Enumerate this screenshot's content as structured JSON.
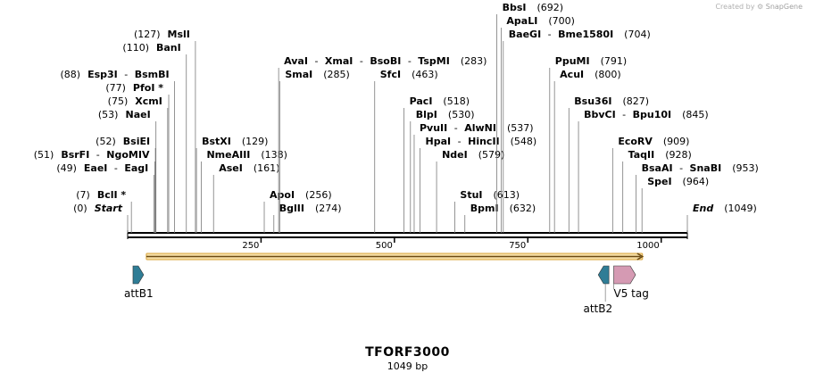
{
  "credit": {
    "prefix": "Created by",
    "brand": "SnapGene"
  },
  "sequence": {
    "name": "TFORF3000",
    "length_label": "1049 bp",
    "length": 1049
  },
  "ruler": {
    "ticks": [
      250,
      500,
      750,
      1000
    ]
  },
  "colors": {
    "attB": "#2f7d96",
    "v5": "#d59ab3",
    "orf_fill": "#f7e0a8",
    "orf_stroke": "#d8a33a",
    "line": "#000000"
  },
  "sites": [
    {
      "row": 0,
      "pos": 0,
      "name": "Start",
      "num": "(0)",
      "italic": true
    },
    {
      "row": 1,
      "pos": 7,
      "name": "BclI *",
      "num": "(7)"
    },
    {
      "row": 3,
      "pos": 49,
      "name": "EaeI",
      "name2": "EagI",
      "num": "(49)"
    },
    {
      "row": 4,
      "pos": 51,
      "name": "BsrFI",
      "name2": "NgoMIV",
      "num": "(51)"
    },
    {
      "row": 5,
      "pos": 52,
      "name": "BsiEI",
      "num": "(52)"
    },
    {
      "row": 7,
      "pos": 53,
      "name": "NaeI",
      "num": "(53)"
    },
    {
      "row": 8,
      "pos": 75,
      "name": "XcmI",
      "num": "(75)"
    },
    {
      "row": 9,
      "pos": 77,
      "name": "PfoI *",
      "num": "(77)"
    },
    {
      "row": 10,
      "pos": 88,
      "name": "Esp3I",
      "name2": "BsmBI",
      "num": "(88)"
    },
    {
      "row": 12,
      "pos": 110,
      "name": "BanI",
      "num": "(110)"
    },
    {
      "row": 13,
      "pos": 127,
      "name": "MslI",
      "num": "(127)"
    },
    {
      "row": 5,
      "pos": 129,
      "name": "BstXI",
      "num": "(129)",
      "right": true
    },
    {
      "row": 4,
      "pos": 138,
      "name": "NmeAIII",
      "num": "(138)",
      "right": true
    },
    {
      "row": 3,
      "pos": 161,
      "name": "AseI",
      "num": "(161)",
      "right": true
    },
    {
      "row": 1,
      "pos": 256,
      "name": "ApoI",
      "num": "(256)",
      "right": true
    },
    {
      "row": 0,
      "pos": 274,
      "name": "BglII",
      "num": "(274)",
      "right": true
    },
    {
      "row": 10,
      "pos": 285,
      "name": "SmaI",
      "num": "(285)",
      "right": true
    },
    {
      "row": 11,
      "pos": 283,
      "name": "AvaI",
      "name2": "XmaI",
      "name3": "BsoBI",
      "name4": "TspMI",
      "num": "(283)",
      "right": true
    },
    {
      "row": 10,
      "pos": 463,
      "name": "SfcI",
      "num": "(463)",
      "right": true
    },
    {
      "row": 8,
      "pos": 518,
      "name": "PacI",
      "num": "(518)",
      "right": true
    },
    {
      "row": 7,
      "pos": 530,
      "name": "BlpI",
      "num": "(530)",
      "right": true
    },
    {
      "row": 6,
      "pos": 537,
      "name": "PvuII",
      "name2": "AlwNI",
      "num": "(537)",
      "right": true
    },
    {
      "row": 5,
      "pos": 548,
      "name": "HpaI",
      "name2": "HincII",
      "num": "(548)",
      "right": true
    },
    {
      "row": 4,
      "pos": 579,
      "name": "NdeI",
      "num": "(579)",
      "right": true
    },
    {
      "row": 1,
      "pos": 613,
      "name": "StuI",
      "num": "(613)",
      "right": true
    },
    {
      "row": 0,
      "pos": 632,
      "name": "BpmI",
      "num": "(632)",
      "right": true
    },
    {
      "row": 15,
      "pos": 692,
      "name": "BbsI",
      "num": "(692)",
      "right": true
    },
    {
      "row": 14,
      "pos": 700,
      "name": "ApaLI",
      "num": "(700)",
      "right": true
    },
    {
      "row": 13,
      "pos": 704,
      "name": "BaeGI",
      "name2": "Bme1580I",
      "num": "(704)",
      "right": true
    },
    {
      "row": 11,
      "pos": 791,
      "name": "PpuMI",
      "num": "(791)",
      "right": true
    },
    {
      "row": 10,
      "pos": 800,
      "name": "AcuI",
      "num": "(800)",
      "right": true
    },
    {
      "row": 8,
      "pos": 827,
      "name": "Bsu36I",
      "num": "(827)",
      "right": true
    },
    {
      "row": 7,
      "pos": 845,
      "name": "BbvCI",
      "name2": "Bpu10I",
      "num": "(845)",
      "right": true
    },
    {
      "row": 5,
      "pos": 909,
      "name": "EcoRV",
      "num": "(909)",
      "right": true
    },
    {
      "row": 4,
      "pos": 928,
      "name": "TaqII",
      "num": "(928)",
      "right": true
    },
    {
      "row": 3,
      "pos": 953,
      "name": "BsaAI",
      "name2": "SnaBI",
      "num": "(953)",
      "right": true
    },
    {
      "row": 2,
      "pos": 964,
      "name": "SpeI",
      "num": "(964)",
      "right": true
    },
    {
      "row": 0,
      "pos": 1049,
      "name": "End",
      "num": "(1049)",
      "right": true,
      "italic": true
    }
  ],
  "features": [
    {
      "name": "attB1",
      "start": 10,
      "end": 30,
      "dir": "fwd",
      "color_key": "attB"
    },
    {
      "name": "attB2",
      "start": 882,
      "end": 902,
      "dir": "rev",
      "color_key": "attB"
    },
    {
      "name": "V5 tag",
      "start": 911,
      "end": 952,
      "dir": "fwd",
      "color_key": "v5"
    }
  ],
  "orf": {
    "start": 35,
    "end": 965
  }
}
